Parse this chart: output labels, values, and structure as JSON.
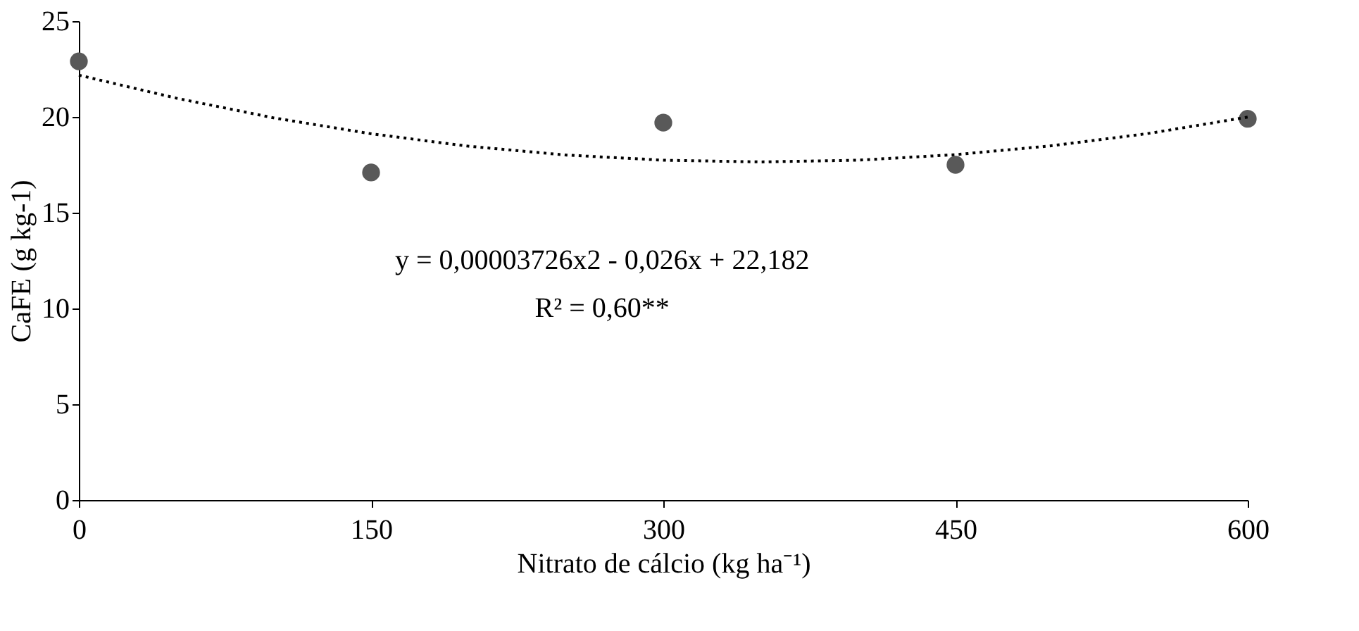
{
  "chart_data": {
    "type": "scatter",
    "xlabel": "Nitrato de cálcio (kg ha⁻¹)",
    "ylabel": "CaFE  (g kg-1)",
    "x": [
      0,
      150,
      300,
      450,
      600
    ],
    "series": [
      {
        "type": "scatter",
        "color": "#595959",
        "marker": "circle",
        "values": [
          22.9,
          17.1,
          19.7,
          17.5,
          19.9
        ]
      },
      {
        "type": "line",
        "color": "#000000",
        "line_style": "dotted",
        "marker": "none",
        "x": [
          0,
          50,
          100,
          150,
          200,
          250,
          300,
          350,
          400,
          450,
          500,
          550,
          600
        ],
        "values": [
          22.18,
          20.98,
          19.95,
          19.12,
          18.47,
          18.01,
          17.74,
          17.65,
          17.74,
          18.03,
          18.5,
          19.15,
          19.99
        ]
      }
    ],
    "xlim": [
      0,
      600
    ],
    "xticks": [
      0,
      150,
      300,
      450,
      600
    ],
    "ylim": [
      0,
      25
    ],
    "yticks": [
      0,
      5,
      10,
      15,
      20,
      25
    ],
    "grid": false,
    "legend": false,
    "annotations": [
      "y = 0,00003726x2 - 0,026x + 22,182",
      "R² = 0,60**"
    ]
  }
}
